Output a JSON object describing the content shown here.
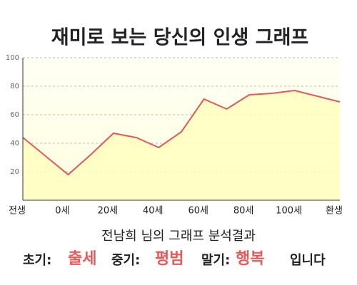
{
  "chart_data": {
    "type": "area",
    "title": "재미로 보는 당신의 인생 그래프",
    "categories": [
      "전생",
      null,
      "0세",
      null,
      "20세",
      null,
      "40세",
      null,
      "60세",
      null,
      "80세",
      null,
      "100세",
      null,
      "환생"
    ],
    "values": [
      44,
      31,
      18,
      32,
      47,
      44,
      37,
      48,
      71,
      64,
      74,
      75,
      77,
      73,
      69
    ],
    "color": "#e05a5a",
    "fill": "#ffffc0",
    "ylim": [
      0,
      100
    ],
    "yticks": [
      20,
      40,
      60,
      80,
      100
    ],
    "grid": true
  },
  "result": {
    "heading": "전남희 님의 그래프 분석결과",
    "early_label": "초기:",
    "early": "출세",
    "middle_label": "중기:",
    "middle": "평범",
    "late_label": "말기:",
    "late": "행복",
    "ending": "입니다"
  }
}
